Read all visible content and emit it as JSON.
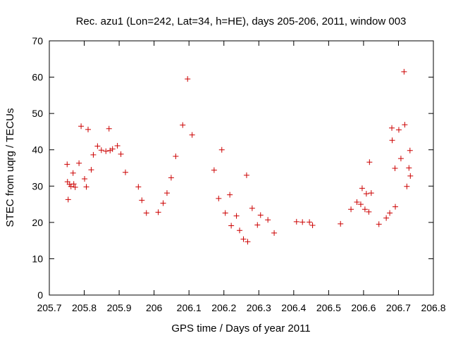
{
  "chart_data": {
    "type": "scatter",
    "title": "Rec. azu1 (Lon=242, Lat=34, h=HE), days 205-206, 2011, window 003",
    "xlabel": "GPS time / Days of year 2011",
    "ylabel": "STEC from uqrg / TECUs",
    "xlim": [
      205.7,
      206.8
    ],
    "ylim": [
      0,
      70
    ],
    "xticks": [
      "205.7",
      "205.8",
      "205.9",
      "206",
      "206.1",
      "206.2",
      "206.3",
      "206.4",
      "206.5",
      "206.6",
      "206.7",
      "206.8"
    ],
    "xtick_values": [
      205.7,
      205.8,
      205.9,
      206.0,
      206.1,
      206.2,
      206.3,
      206.4,
      206.5,
      206.6,
      206.7,
      206.8
    ],
    "yticks": [
      "0",
      "10",
      "20",
      "30",
      "40",
      "50",
      "60",
      "70"
    ],
    "ytick_values": [
      0,
      10,
      20,
      30,
      40,
      50,
      60,
      70
    ],
    "grid": false,
    "marker": "+",
    "color": "#cc0000",
    "series": [
      {
        "x": [
          205.751,
          205.752,
          205.754,
          205.758,
          205.762,
          205.768,
          205.77,
          205.774,
          205.785,
          205.791,
          205.801,
          205.806,
          205.811,
          205.82,
          205.826,
          205.838,
          205.849,
          205.862,
          205.871,
          205.874,
          205.881,
          205.895,
          205.905,
          205.918,
          205.955,
          205.965,
          205.978,
          206.012,
          206.026,
          206.037,
          206.049,
          206.062,
          206.082,
          206.096,
          206.109,
          206.172,
          206.185,
          206.194,
          206.204,
          206.217,
          206.221,
          206.236,
          206.245,
          206.256,
          206.265,
          206.268,
          206.281,
          206.296,
          206.305,
          206.326,
          206.344,
          206.408,
          206.425,
          206.445,
          206.454,
          206.534,
          206.564,
          206.581,
          206.592,
          206.596,
          206.604,
          206.608,
          206.615,
          206.617,
          206.622,
          206.644,
          206.665,
          206.675,
          206.681,
          206.682,
          206.69,
          206.691,
          206.701,
          206.707,
          206.716,
          206.718,
          206.724,
          206.73,
          206.733,
          206.734
        ],
        "y": [
          36.0,
          31.2,
          26.3,
          30.5,
          29.9,
          33.6,
          30.6,
          29.7,
          36.3,
          46.5,
          32.0,
          29.8,
          45.6,
          34.5,
          38.6,
          41.0,
          39.9,
          39.6,
          45.8,
          39.8,
          40.2,
          41.1,
          38.8,
          33.8,
          29.8,
          26.1,
          22.6,
          22.8,
          25.3,
          28.1,
          32.3,
          38.2,
          46.8,
          59.5,
          44.1,
          34.4,
          26.6,
          40.0,
          22.6,
          27.6,
          19.1,
          21.8,
          17.8,
          15.4,
          33.0,
          14.7,
          23.9,
          19.3,
          22.0,
          20.7,
          17.1,
          20.2,
          20.1,
          20.1,
          19.2,
          19.6,
          23.6,
          25.6,
          25.0,
          29.4,
          23.6,
          27.9,
          22.9,
          36.6,
          28.1,
          19.5,
          21.2,
          22.6,
          46.0,
          42.6,
          34.9,
          24.3,
          45.5,
          37.6,
          61.5,
          46.9,
          29.9,
          35.0,
          39.8,
          32.8
        ]
      }
    ]
  }
}
